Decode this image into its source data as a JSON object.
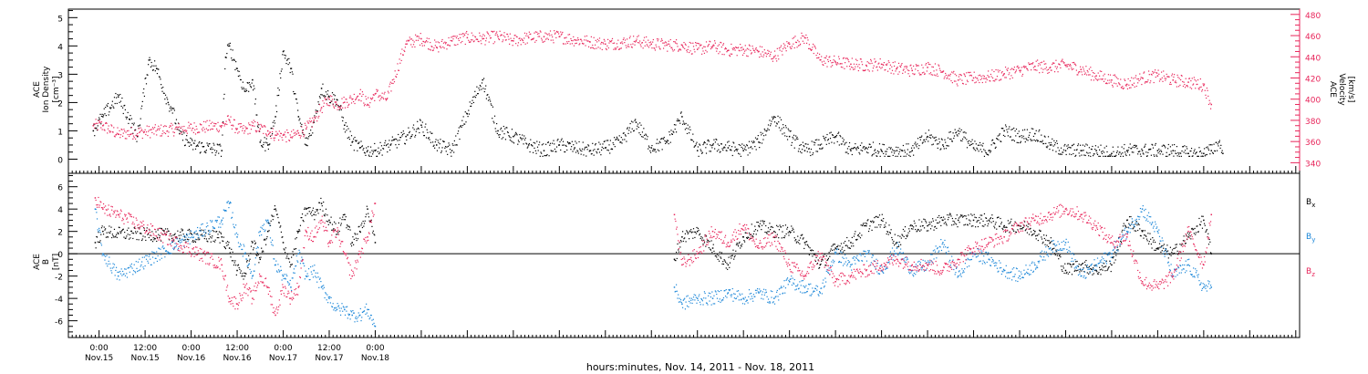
{
  "colors": {
    "black": "#000000",
    "pink": "#e8265b",
    "blue": "#1a86d8"
  },
  "chart_data": [
    {
      "type": "scatter",
      "panel": "top",
      "ylabel_left": [
        "ACE",
        "Ion Density",
        "[cm⁻³]"
      ],
      "ylabel_right": [
        "ACE",
        "Velocity",
        "[km/s]"
      ],
      "ylim_left": [
        -0.5,
        5.3
      ],
      "ylim_right": [
        330,
        485
      ],
      "yticks_left": [
        "0",
        "1",
        "2",
        "3",
        "4",
        "5"
      ],
      "yticks_right": [
        "340",
        "360",
        "380",
        "400",
        "420",
        "440",
        "460",
        "480"
      ],
      "series": [
        {
          "name": "Ion Density",
          "color": "#000000",
          "axis": "left",
          "x": [
            -1.5,
            1,
            5,
            8,
            10,
            13,
            15,
            18,
            19,
            21,
            24,
            32,
            33,
            34,
            36,
            38,
            40,
            42,
            44,
            46,
            48,
            50,
            52,
            54,
            56,
            58,
            60,
            62,
            64,
            66,
            68,
            70,
            72,
            76,
            80,
            84,
            88,
            92,
            96,
            100,
            104,
            108,
            112,
            116,
            120,
            124,
            128,
            132,
            136,
            140,
            144,
            148,
            152,
            156,
            160,
            164,
            168,
            172,
            176,
            180,
            184,
            188,
            192,
            196,
            200,
            204,
            208,
            212,
            216,
            220,
            224,
            228,
            232,
            236,
            240,
            244,
            248,
            252,
            256,
            260,
            264,
            268,
            272,
            276,
            280,
            284,
            288,
            290,
            292,
            293
          ],
          "y": [
            1.0,
            1.5,
            2.2,
            1.4,
            0.8,
            3.5,
            3.2,
            2.0,
            1.8,
            0.9,
            0.5,
            0.3,
            3.6,
            4.0,
            3.2,
            2.4,
            2.8,
            0.6,
            0.5,
            1.5,
            3.8,
            3.2,
            1.5,
            0.5,
            1.3,
            2.5,
            2.2,
            2.1,
            1.2,
            0.6,
            0.4,
            0.3,
            0.3,
            0.5,
            0.8,
            1.2,
            0.5,
            0.3,
            1.6,
            2.8,
            1.0,
            0.8,
            0.5,
            0.3,
            0.5,
            0.4,
            0.3,
            0.4,
            0.6,
            1.3,
            0.4,
            0.6,
            1.5,
            0.3,
            0.5,
            0.4,
            0.3,
            0.6,
            1.5,
            0.8,
            0.3,
            0.5,
            0.8,
            0.3,
            0.4,
            0.3,
            0.3,
            0.3,
            0.8,
            0.5,
            1.0,
            0.4,
            0.3,
            1.0,
            0.8,
            0.9,
            0.5,
            0.3,
            0.3,
            0.3,
            0.2,
            0.3,
            0.3,
            0.3,
            0.3,
            0.2,
            0.2,
            0.3,
            0.6,
            0.2
          ]
        },
        {
          "name": "Velocity",
          "color": "#e8265b",
          "axis": "right",
          "x": [
            -1.5,
            1,
            5,
            32,
            34,
            36,
            38,
            40,
            42,
            44,
            46,
            48,
            50,
            52,
            54,
            56,
            58,
            60,
            62,
            64,
            66,
            68,
            70,
            72,
            75,
            80,
            84,
            88,
            92,
            96,
            100,
            104,
            108,
            112,
            116,
            120,
            124,
            128,
            132,
            136,
            140,
            144,
            148,
            152,
            156,
            160,
            164,
            168,
            172,
            176,
            180,
            184,
            188,
            192,
            196,
            200,
            204,
            208,
            212,
            216,
            220,
            224,
            228,
            232,
            236,
            240,
            244,
            248,
            252,
            256,
            260,
            264,
            268,
            272,
            276,
            280,
            284,
            288,
            290
          ],
          "y": [
            375,
            375,
            367,
            375,
            380,
            372,
            370,
            375,
            372,
            370,
            366,
            366,
            364,
            368,
            372,
            380,
            392,
            400,
            395,
            397,
            400,
            405,
            395,
            405,
            400,
            452,
            457,
            449,
            455,
            458,
            457,
            459,
            455,
            458,
            459,
            459,
            456,
            454,
            452,
            453,
            455,
            452,
            451,
            451,
            447,
            450,
            446,
            447,
            445,
            440,
            452,
            458,
            437,
            435,
            433,
            432,
            433,
            429,
            427,
            430,
            426,
            418,
            420,
            421,
            424,
            427,
            431,
            430,
            432,
            428,
            422,
            418,
            414,
            420,
            422,
            418,
            416,
            413,
            395
          ]
        }
      ]
    },
    {
      "type": "scatter",
      "panel": "bottom",
      "ylabel": [
        "ACE",
        "B",
        "[nT]"
      ],
      "ylim": [
        -7.5,
        7.2
      ],
      "yticks": [
        "-6",
        "-4",
        "-2",
        "0",
        "2",
        "4",
        "6"
      ],
      "legend": [
        "Bx",
        "By",
        "Bz"
      ],
      "legend_position": "right",
      "series": [
        {
          "name": "Bx",
          "color": "#000000",
          "x": [
            -1,
            1,
            5,
            32,
            34,
            36,
            38,
            40,
            42,
            44,
            46,
            48,
            50,
            52,
            54,
            56,
            58,
            60,
            62,
            64,
            66,
            68,
            70,
            72,
            150,
            152,
            156,
            160,
            164,
            168,
            172,
            176,
            180,
            184,
            188,
            192,
            196,
            200,
            204,
            208,
            212,
            216,
            220,
            224,
            228,
            232,
            236,
            240,
            244,
            248,
            252,
            256,
            260,
            264,
            268,
            272,
            276,
            280,
            284,
            288,
            290
          ],
          "y": [
            1.0,
            2.0,
            1.8,
            1.5,
            0.5,
            -1.5,
            -2.0,
            1.0,
            -0.5,
            2.0,
            4.0,
            1.0,
            -1.0,
            2.0,
            4.0,
            3.5,
            4.5,
            3.0,
            2.0,
            3.5,
            1.0,
            2.0,
            4.0,
            1.0,
            -0.5,
            1.5,
            2.0,
            0.5,
            -1.0,
            1.5,
            2.5,
            2.0,
            2.0,
            1.0,
            -1.0,
            0.5,
            1.0,
            2.5,
            3.0,
            1.0,
            2.5,
            2.5,
            3.0,
            3.0,
            3.0,
            3.0,
            2.5,
            2.5,
            2.0,
            1.0,
            -1.5,
            -1.0,
            -1.5,
            -1.0,
            3.0,
            2.0,
            0.5,
            0.0,
            1.5,
            3.0,
            0.0
          ]
        },
        {
          "name": "By",
          "color": "#1a86d8",
          "x": [
            -1,
            1,
            5,
            32,
            34,
            36,
            38,
            40,
            42,
            44,
            46,
            48,
            50,
            52,
            54,
            56,
            58,
            60,
            62,
            64,
            66,
            68,
            70,
            72,
            150,
            152,
            156,
            160,
            164,
            168,
            172,
            176,
            180,
            184,
            188,
            192,
            196,
            200,
            204,
            208,
            212,
            216,
            220,
            224,
            228,
            232,
            236,
            240,
            244,
            248,
            252,
            256,
            260,
            264,
            268,
            272,
            276,
            280,
            284,
            288,
            290
          ],
          "y": [
            4.0,
            0.0,
            -2.0,
            3.0,
            4.5,
            1.5,
            0.0,
            -2.0,
            2.0,
            3.0,
            -1.0,
            -2.0,
            -3.0,
            0.0,
            -2.0,
            -1.5,
            -3.0,
            -4.0,
            -5.0,
            -5.0,
            -5.5,
            -5.5,
            -5.0,
            -6.5,
            -3.0,
            -4.5,
            -4.0,
            -4.0,
            -3.5,
            -4.0,
            -3.5,
            -4.0,
            -2.5,
            -3.0,
            -3.5,
            0.0,
            -1.0,
            0.0,
            -1.5,
            0.5,
            -1.5,
            -1.0,
            1.0,
            -2.0,
            0.0,
            -0.5,
            -1.5,
            -2.0,
            -1.0,
            0.5,
            1.0,
            -2.0,
            -1.0,
            0.0,
            2.0,
            4.0,
            2.0,
            -2.0,
            -1.0,
            -3.0,
            -3.0
          ]
        },
        {
          "name": "Bz",
          "color": "#e8265b",
          "x": [
            -1,
            1,
            5,
            32,
            34,
            36,
            38,
            40,
            42,
            44,
            46,
            48,
            50,
            52,
            54,
            56,
            58,
            60,
            62,
            64,
            66,
            68,
            70,
            72,
            150,
            152,
            156,
            160,
            164,
            168,
            172,
            176,
            180,
            184,
            188,
            192,
            196,
            200,
            204,
            208,
            212,
            216,
            220,
            224,
            228,
            232,
            236,
            240,
            244,
            248,
            252,
            256,
            260,
            264,
            268,
            272,
            276,
            280,
            284,
            288,
            290
          ],
          "y": [
            5.0,
            4.0,
            3.5,
            -1.0,
            -4.0,
            -4.5,
            -3.0,
            -4.0,
            -2.0,
            -3.0,
            -5.5,
            -3.0,
            -4.0,
            -3.0,
            2.0,
            1.5,
            3.0,
            1.0,
            2.0,
            0.0,
            -2.0,
            0.0,
            1.5,
            4.5,
            3.5,
            -1.0,
            0.0,
            2.0,
            1.0,
            2.5,
            0.5,
            1.5,
            -1.0,
            -2.0,
            0.0,
            -2.5,
            -2.0,
            -1.5,
            -1.0,
            -0.5,
            -1.0,
            -1.0,
            -1.5,
            -0.5,
            0.5,
            1.0,
            1.5,
            2.5,
            3.0,
            3.5,
            4.0,
            3.5,
            2.5,
            1.0,
            1.5,
            -2.5,
            -3.0,
            -2.0,
            2.0,
            -1.0,
            3.5
          ]
        }
      ]
    }
  ],
  "xaxis": {
    "ticks": [
      {
        "time": "0:00",
        "date": "Nov.15"
      },
      {
        "time": "12:00",
        "date": "Nov.15"
      },
      {
        "time": "0:00",
        "date": "Nov.16"
      },
      {
        "time": "12:00",
        "date": "Nov.16"
      },
      {
        "time": "0:00",
        "date": "Nov.17"
      },
      {
        "time": "12:00",
        "date": "Nov.17"
      },
      {
        "time": "0:00",
        "date": "Nov.18"
      }
    ],
    "xlabel": "hours:minutes, Nov. 14, 2011 - Nov. 18, 2011"
  },
  "legend_labels": {
    "bx": "B",
    "bx_sub": "x",
    "by": "B",
    "by_sub": "y",
    "bz": "B",
    "bz_sub": "z"
  }
}
